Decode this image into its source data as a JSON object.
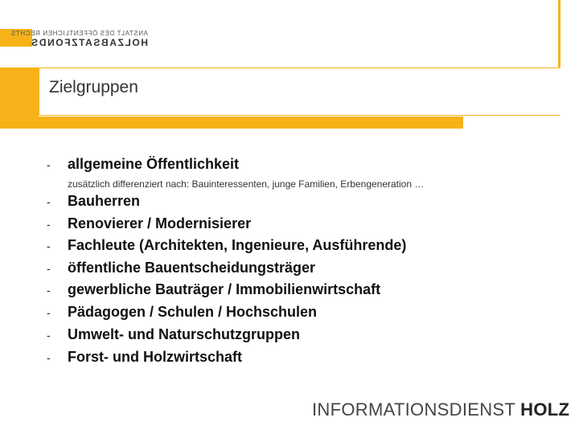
{
  "logo": {
    "line1": "ANSTALT DES ÖFFENTLICHEN RECHTS",
    "line2": "HOLZABSATZFONDS"
  },
  "slide": {
    "title": "Zielgruppen",
    "primary": {
      "dash": "-",
      "text": "allgemeine Öffentlichkeit"
    },
    "subnote": "zusätzlich differenziert nach: Bauinteressenten, junge Familien, Erbengeneration …",
    "items": [
      {
        "dash": "-",
        "text": "Bauherren"
      },
      {
        "dash": "-",
        "text": "Renovierer / Modernisierer"
      },
      {
        "dash": "-",
        "text": "Fachleute (Architekten, Ingenieure, Ausführende)"
      },
      {
        "dash": "-",
        "text": "öffentliche Bauentscheidungsträger"
      },
      {
        "dash": "-",
        "text": "gewerbliche Bauträger / Immobilienwirtschaft"
      },
      {
        "dash": "-",
        "text": "Pädagogen / Schulen / Hochschulen"
      },
      {
        "dash": "-",
        "text": "Umwelt- und Naturschutzgruppen"
      },
      {
        "dash": "-",
        "text": "Forst- und Holzwirtschaft"
      }
    ]
  },
  "footer": {
    "part1": "INFORMATIONSDIENST",
    "part2": "HOLZ"
  },
  "colors": {
    "accent": "#f7b21a"
  }
}
